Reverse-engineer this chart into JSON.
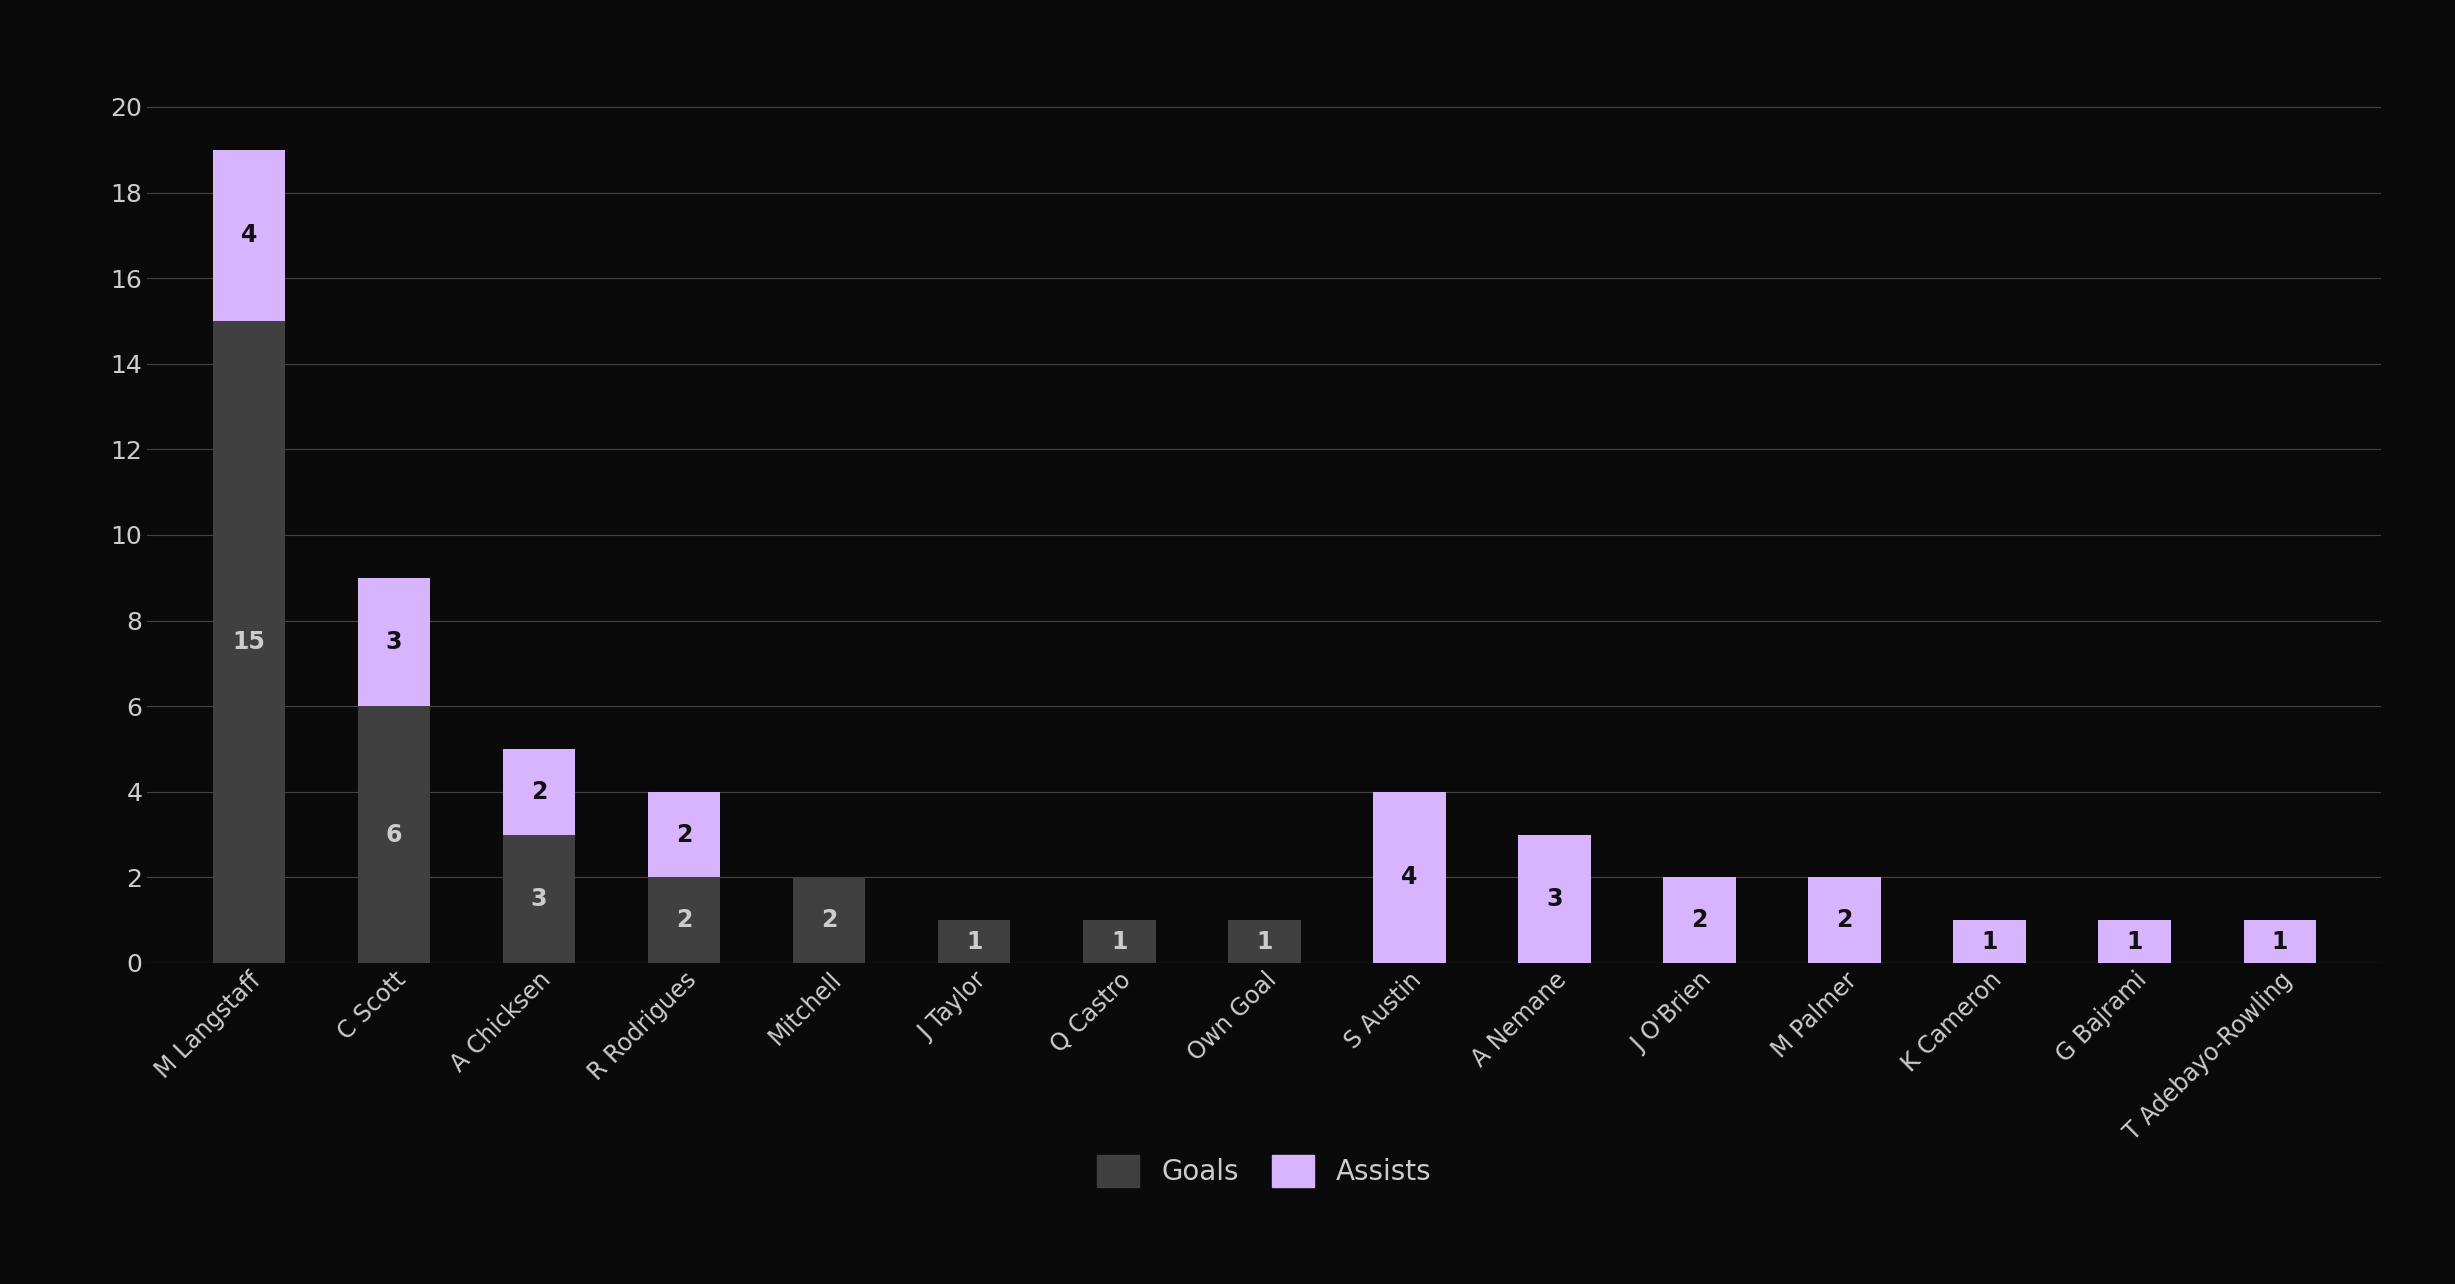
{
  "players": [
    "M Langstaff",
    "C Scott",
    "A Chicksen",
    "R Rodrigues",
    "Mitchell",
    "J Taylor",
    "Q Castro",
    "Own Goal",
    "S Austin",
    "A Nemane",
    "J O'Brien",
    "M Palmer",
    "K Cameron",
    "G Bajrami",
    "T Adebayo-Rowling"
  ],
  "goals": [
    15,
    6,
    3,
    2,
    2,
    1,
    1,
    1,
    0,
    0,
    0,
    0,
    0,
    0,
    0
  ],
  "assists": [
    4,
    3,
    2,
    2,
    0,
    0,
    0,
    0,
    4,
    3,
    2,
    2,
    1,
    1,
    1
  ],
  "goals_color": "#404040",
  "assists_color": "#d8b4fe",
  "background_color": "#0a0a0a",
  "text_color": "#cccccc",
  "label_color_dark": "#111111",
  "grid_color": "#444444",
  "ylim": [
    0,
    21
  ],
  "yticks": [
    0,
    2,
    4,
    6,
    8,
    10,
    12,
    14,
    16,
    18,
    20
  ],
  "bar_width": 0.5,
  "legend_goals_label": "Goals",
  "legend_assists_label": "Assists"
}
